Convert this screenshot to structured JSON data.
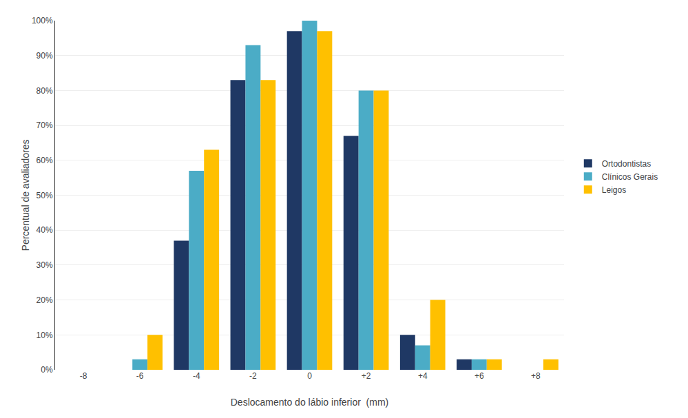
{
  "chart_data": {
    "type": "bar",
    "categories": [
      "-8",
      "-6",
      "-4",
      "-2",
      "0",
      "+2",
      "+4",
      "+6",
      "+8"
    ],
    "series": [
      {
        "name": "Ortodontistas",
        "color": "#1F3864",
        "values": [
          0,
          0,
          37,
          83,
          97,
          67,
          10,
          3,
          0
        ]
      },
      {
        "name": "Clínicos Gerais",
        "color": "#4BACC6",
        "values": [
          0,
          3,
          57,
          93,
          100,
          80,
          7,
          3,
          0
        ]
      },
      {
        "name": "Leigos",
        "color": "#FFC000",
        "values": [
          0,
          10,
          63,
          83,
          97,
          80,
          20,
          3,
          3
        ]
      }
    ],
    "xlabel": "Deslocamento do lábio inferior  (mm)",
    "ylabel": "Percentual de avaliadores",
    "ylim": [
      0,
      100
    ],
    "yticks": [
      {
        "value": 0,
        "label": "0%"
      },
      {
        "value": 10,
        "label": "10%"
      },
      {
        "value": 20,
        "label": "20%"
      },
      {
        "value": 30,
        "label": "30%"
      },
      {
        "value": 40,
        "label": "40%"
      },
      {
        "value": 50,
        "label": "50%"
      },
      {
        "value": 60,
        "label": "60%"
      },
      {
        "value": 70,
        "label": "70%"
      },
      {
        "value": 80,
        "label": "80%"
      },
      {
        "value": 90,
        "label": "90%"
      },
      {
        "value": 100,
        "label": "100%"
      }
    ],
    "grid": true,
    "legend": "right"
  }
}
